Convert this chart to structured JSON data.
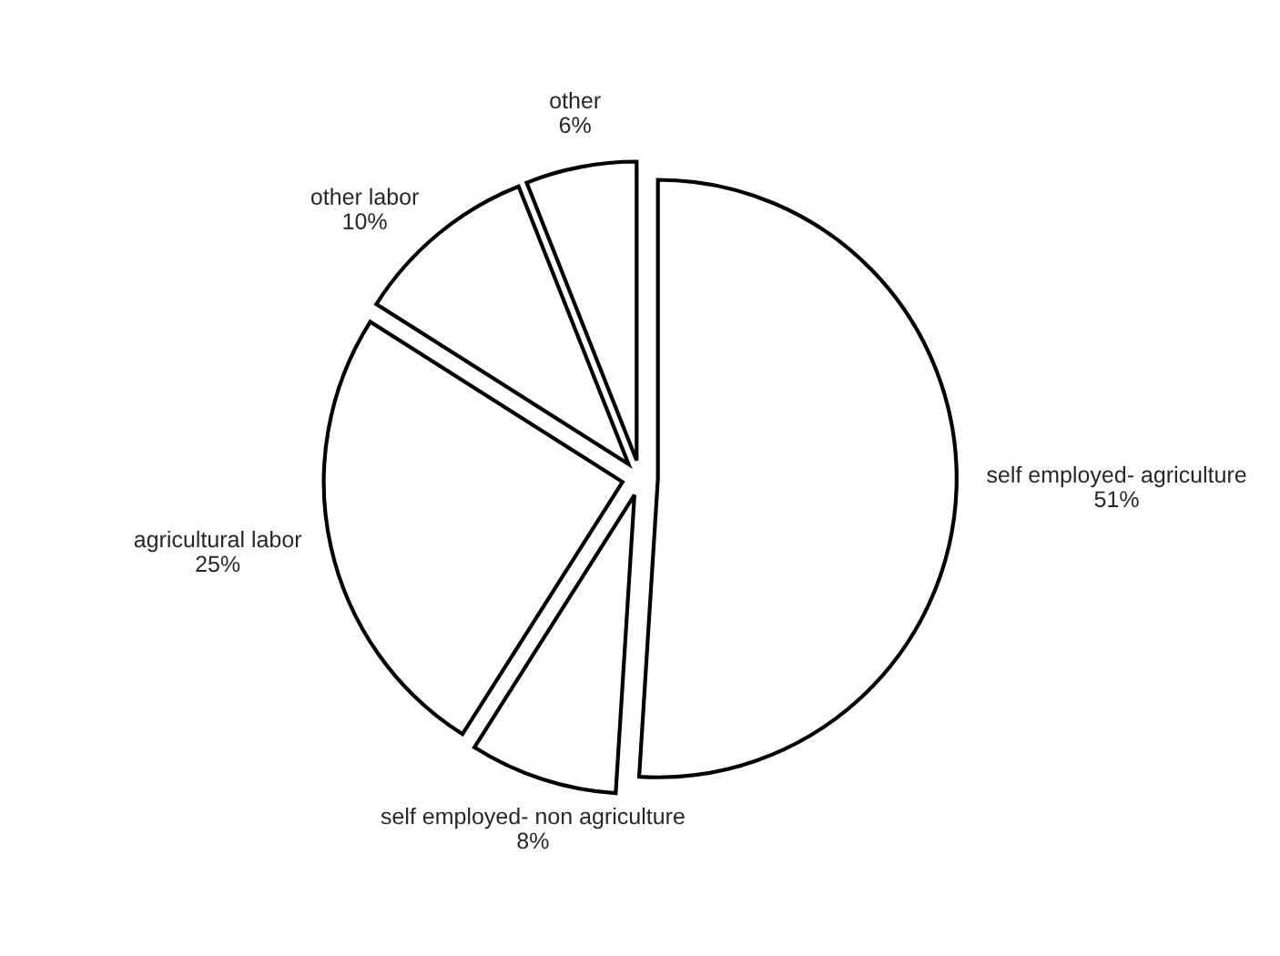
{
  "chart_data": {
    "type": "pie",
    "categories": [
      "self employed- agriculture",
      "self employed- non agriculture",
      "agricultural labor",
      "other labor",
      "other"
    ],
    "values": [
      51,
      8,
      25,
      10,
      6
    ],
    "value_labels": [
      "51%",
      "8%",
      "25%",
      "10%",
      "6%"
    ],
    "colors": [
      "#ffffff",
      "#ffffff",
      "#ffffff",
      "#ffffff",
      "#ffffff"
    ],
    "legend": false
  }
}
